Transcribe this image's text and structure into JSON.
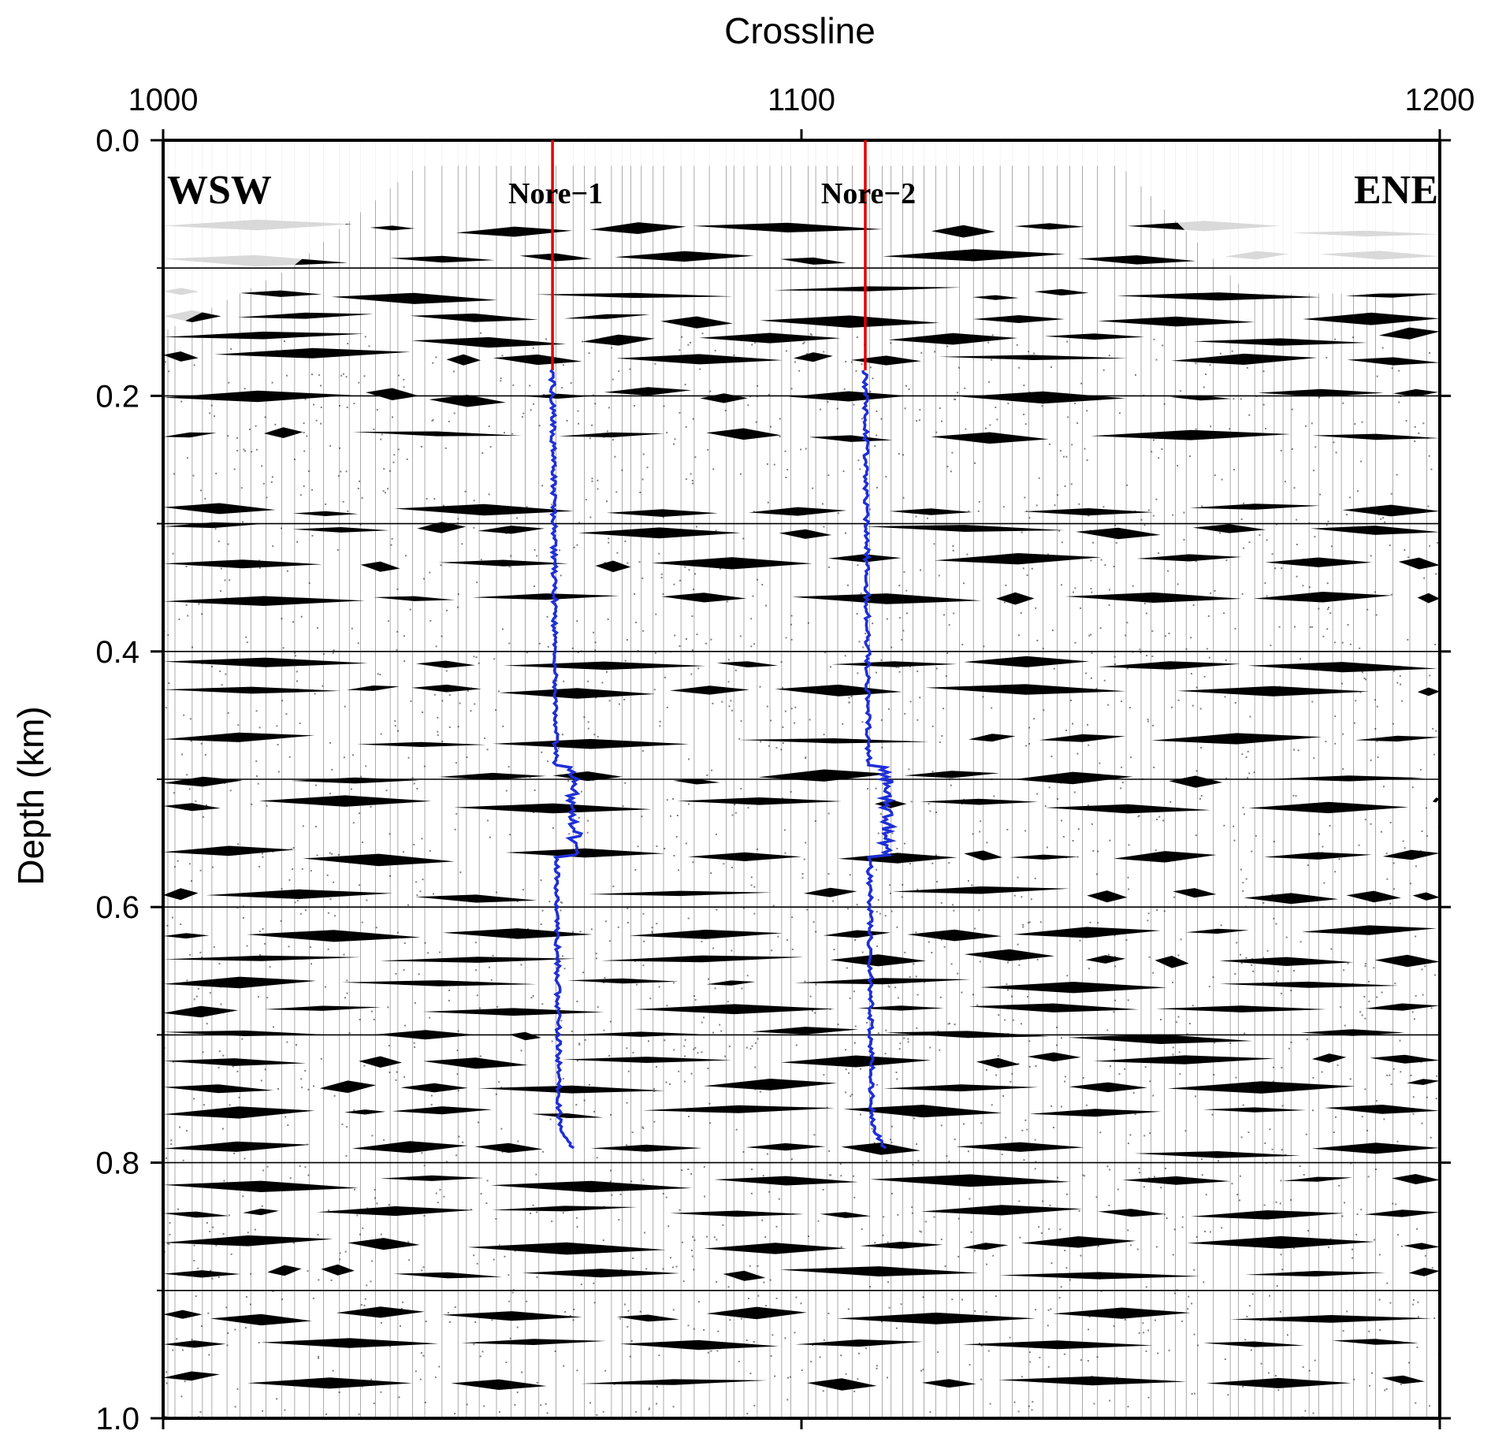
{
  "chart_data": {
    "type": "seismic-section",
    "xlabel": "Crossline",
    "ylabel": "Depth (km)",
    "xlim": [
      1000,
      1200
    ],
    "ylim": [
      0.0,
      1.0
    ],
    "x_ticks": [
      {
        "value": 1000,
        "label": "1000"
      },
      {
        "value": 1100,
        "label": "1100"
      },
      {
        "value": 1200,
        "label": "1200"
      }
    ],
    "y_ticks": [
      {
        "value": 0.0,
        "label": "0.0"
      },
      {
        "value": 0.2,
        "label": "0.2"
      },
      {
        "value": 0.4,
        "label": "0.4"
      },
      {
        "value": 0.6,
        "label": "0.6"
      },
      {
        "value": 0.8,
        "label": "0.8"
      },
      {
        "value": 1.0,
        "label": "1.0"
      }
    ],
    "grid_depths": [
      0.1,
      0.2,
      0.3,
      0.4,
      0.5,
      0.6,
      0.7,
      0.8,
      0.9
    ],
    "direction_labels": {
      "left": "WSW",
      "right": "ENE"
    },
    "wells": [
      {
        "name": "Nore−1",
        "crossline": 1061,
        "log_top": 0.18,
        "log_bottom": 0.79
      },
      {
        "name": "Nore−2",
        "crossline": 1110,
        "log_top": 0.18,
        "log_bottom": 0.79
      }
    ],
    "reflectors_km": [
      0.07,
      0.09,
      0.12,
      0.14,
      0.155,
      0.17,
      0.2,
      0.23,
      0.29,
      0.305,
      0.33,
      0.36,
      0.41,
      0.43,
      0.47,
      0.5,
      0.52,
      0.56,
      0.59,
      0.62,
      0.64,
      0.66,
      0.68,
      0.7,
      0.72,
      0.74,
      0.76,
      0.79,
      0.815,
      0.84,
      0.865,
      0.885,
      0.92,
      0.94,
      0.97
    ],
    "colors": {
      "traces": "#000000",
      "well_line": "#e00000",
      "well_log": "#1f2fd6",
      "grid": "#000000"
    }
  }
}
